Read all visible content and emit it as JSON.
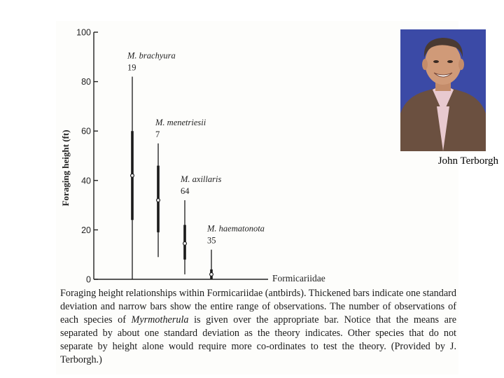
{
  "chart_data": {
    "type": "range",
    "ylabel": "Foraging height (ft)",
    "ylim": [
      0,
      100
    ],
    "yticks": [
      0,
      20,
      40,
      60,
      80,
      100
    ],
    "xlabel": "Formicariidae",
    "grid": false,
    "series": [
      {
        "name": "M. brachyura",
        "n": "19",
        "min": 0,
        "max": 82,
        "sd_low": 24,
        "sd_high": 60,
        "mean": 42
      },
      {
        "name": "M. menetriesii",
        "n": "7",
        "min": 9,
        "max": 55,
        "sd_low": 19,
        "sd_high": 46,
        "mean": 32
      },
      {
        "name": "M. axillaris",
        "n": "64",
        "min": 2,
        "max": 32,
        "sd_low": 8,
        "sd_high": 22,
        "mean": 14.5
      },
      {
        "name": "M. haematonota",
        "n": "35",
        "min": 0,
        "max": 12,
        "sd_low": 0,
        "sd_high": 4,
        "mean": 2
      }
    ]
  },
  "caption": {
    "before": "Foraging height relationships within Formicariidae (antbirds). Thickened bars indicate one standard deviation and narrow bars show the entire range of observations. The number of observations of each species of ",
    "genus": "Myrmotherula",
    "after": " is given over the appropriate bar. Notice that the means are separated by about one standard deviation as the theory indicates. Other species that do not separate by height alone would require more co-ordinates to test the theory. (Provided by J. Terborgh.)"
  },
  "photo": {
    "caption": "John Terborgh",
    "colors": {
      "background": "#3b4aa6",
      "jacket": "#6b5040",
      "shirt": "#e8c9cf",
      "skin": "#d09a78",
      "hair": "#4a3a32"
    }
  }
}
